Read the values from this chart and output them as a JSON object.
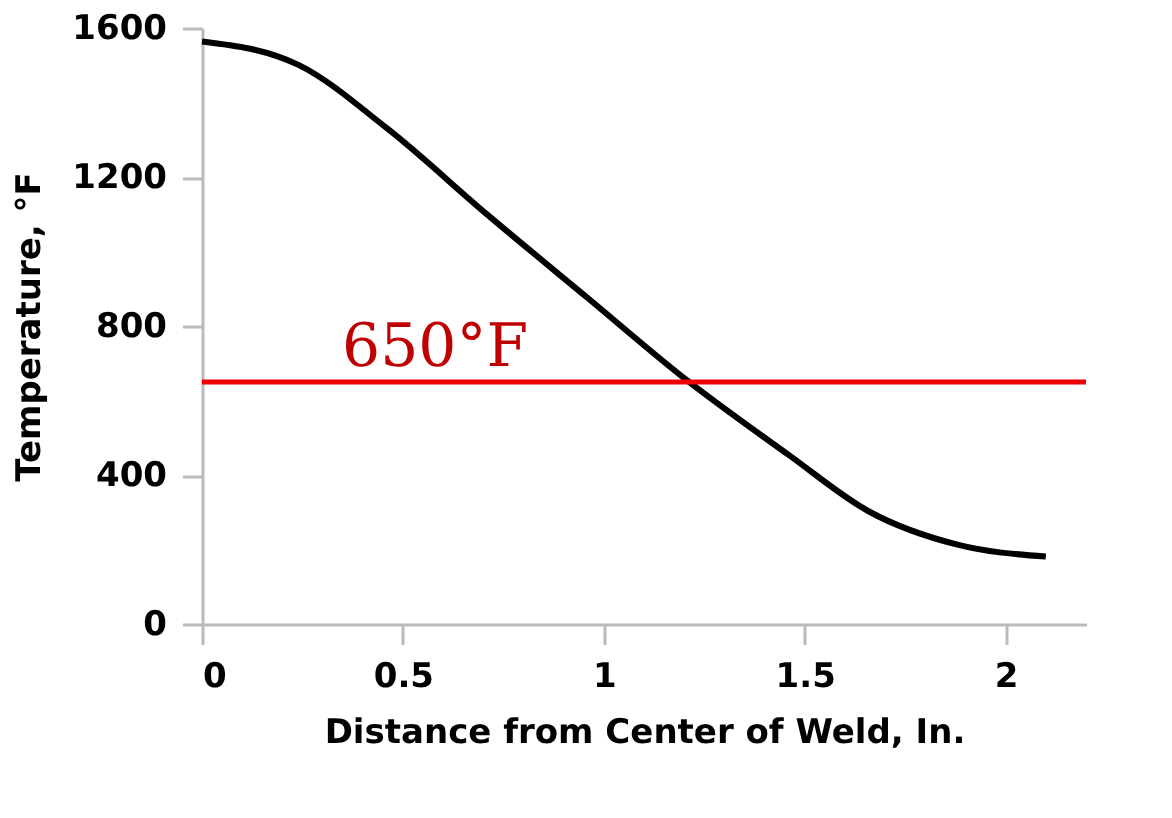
{
  "chart_data": {
    "type": "line",
    "xlabel": "Distance from Center of Weld, In.",
    "ylabel": "Temperature, °F",
    "x": [
      0,
      0.24,
      0.46,
      0.71,
      0.96,
      1.2,
      1.46,
      1.66,
      1.88,
      2.1
    ],
    "series": [
      {
        "color": "#000000",
        "values": [
          1564,
          1501,
          1331,
          1099,
          875,
          660,
          454,
          302,
          213,
          181
        ]
      }
    ],
    "xlim": [
      0,
      2.2
    ],
    "xticks": [
      0,
      0.5,
      1,
      1.5,
      2
    ],
    "ylim": [
      0,
      1600
    ],
    "yticks": [
      0,
      400,
      800,
      1200,
      1600
    ],
    "ref_lines": [
      {
        "axis": "y",
        "value": 650,
        "label": "650°F",
        "color": "#ee0000"
      }
    ],
    "grid": false,
    "marker": "none",
    "line_style": "solid"
  }
}
